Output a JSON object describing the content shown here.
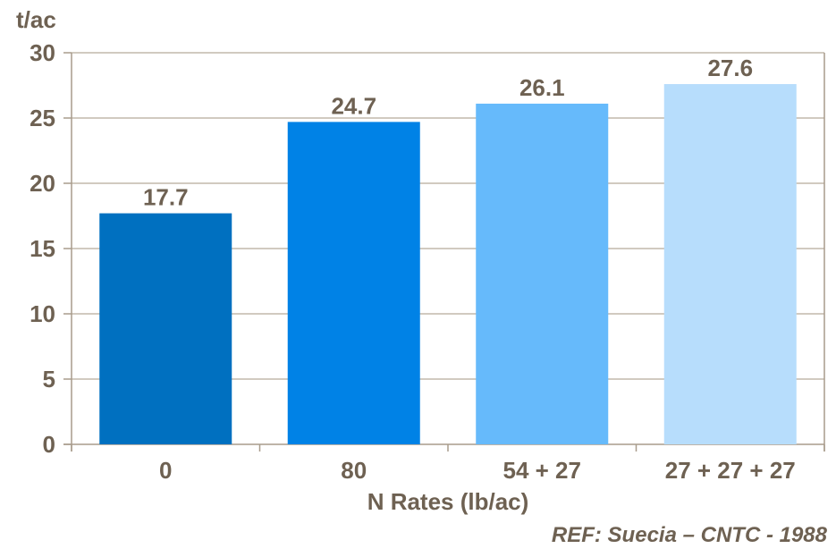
{
  "chart_data": {
    "type": "bar",
    "title": "",
    "unit_label": "t/ac",
    "xlabel": "N Rates (lb/ac)",
    "ylabel": "t/ac",
    "categories": [
      "0",
      "80",
      "54 + 27",
      "27 + 27 + 27"
    ],
    "values": [
      17.7,
      24.7,
      26.1,
      27.6
    ],
    "value_labels": [
      "17.7",
      "24.7",
      "26.1",
      "27.6"
    ],
    "bar_colors": [
      "#0070C0",
      "#0082E6",
      "#66BAFB",
      "#B7DDFC"
    ],
    "ylim": [
      0,
      30
    ],
    "yticks": [
      0,
      5,
      10,
      15,
      20,
      25,
      30
    ],
    "grid": true,
    "legend": "none"
  },
  "annotation": {
    "reference": "REF: Suecia – CNTC - 1988"
  },
  "colors": {
    "background": "#FFFFFF",
    "text": "#6E6152",
    "gridline": "#C2B8AB",
    "axis": "#A89C8C"
  }
}
